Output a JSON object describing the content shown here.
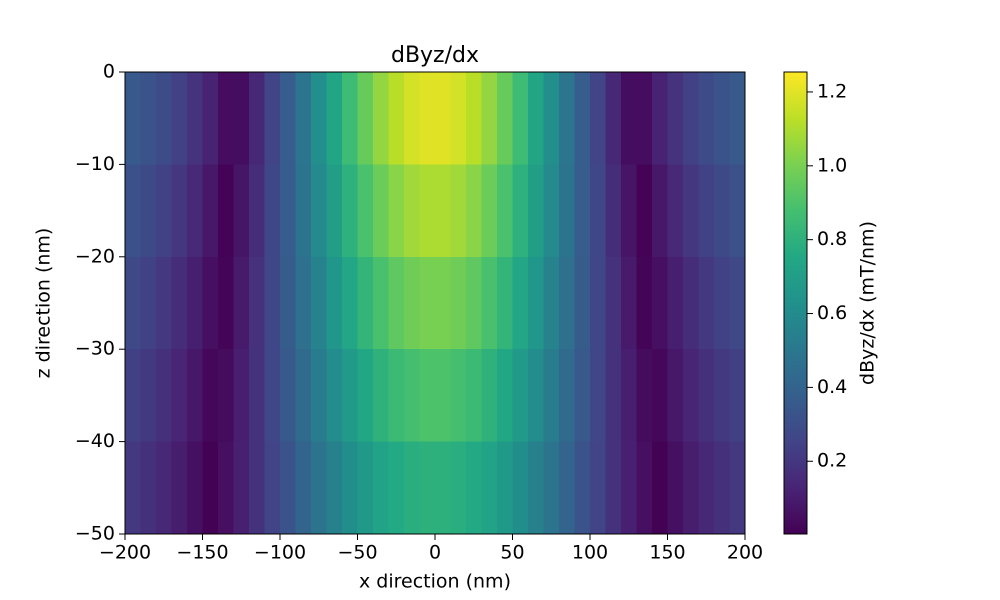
{
  "chart_data": {
    "type": "heatmap",
    "title": "dByz/dx",
    "x_label": "x direction (nm)",
    "y_label": "z direction (nm)",
    "colorbar_label": "dByz/dx (mT/nm)",
    "colormap": "viridis",
    "x": [
      -195,
      -185,
      -175,
      -165,
      -155,
      -145,
      -135,
      -125,
      -115,
      -105,
      -95,
      -85,
      -75,
      -65,
      -55,
      -45,
      -35,
      -25,
      -15,
      -5,
      5,
      15,
      25,
      35,
      45,
      55,
      65,
      75,
      85,
      95,
      105,
      115,
      125,
      135,
      145,
      155,
      165,
      175,
      185,
      195
    ],
    "y": [
      -5,
      -15,
      -25,
      -35,
      -45
    ],
    "values": [
      [
        0.352,
        0.323,
        0.287,
        0.242,
        0.187,
        0.121,
        0.044,
        0.045,
        0.144,
        0.253,
        0.371,
        0.492,
        0.617,
        0.739,
        0.855,
        0.96,
        1.05,
        1.122,
        1.171,
        1.197,
        1.197,
        1.171,
        1.122,
        1.05,
        0.96,
        0.855,
        0.739,
        0.617,
        0.492,
        0.371,
        0.253,
        0.144,
        0.045,
        0.044,
        0.121,
        0.187,
        0.242,
        0.287,
        0.323,
        0.352
      ],
      [
        0.313,
        0.283,
        0.246,
        0.201,
        0.147,
        0.084,
        0.01,
        0.073,
        0.165,
        0.265,
        0.371,
        0.48,
        0.591,
        0.699,
        0.8,
        0.892,
        0.97,
        1.032,
        1.075,
        1.097,
        1.097,
        1.075,
        1.032,
        0.97,
        0.892,
        0.8,
        0.699,
        0.591,
        0.48,
        0.371,
        0.265,
        0.165,
        0.073,
        0.01,
        0.084,
        0.147,
        0.201,
        0.246,
        0.283,
        0.313
      ],
      [
        0.275,
        0.245,
        0.208,
        0.164,
        0.112,
        0.052,
        0.017,
        0.094,
        0.178,
        0.269,
        0.363,
        0.461,
        0.558,
        0.653,
        0.742,
        0.821,
        0.889,
        0.942,
        0.979,
        0.998,
        0.998,
        0.979,
        0.942,
        0.889,
        0.821,
        0.742,
        0.653,
        0.558,
        0.461,
        0.363,
        0.269,
        0.178,
        0.094,
        0.017,
        0.052,
        0.112,
        0.164,
        0.208,
        0.245,
        0.275
      ],
      [
        0.239,
        0.209,
        0.174,
        0.131,
        0.082,
        0.026,
        0.038,
        0.108,
        0.184,
        0.265,
        0.349,
        0.435,
        0.52,
        0.602,
        0.679,
        0.747,
        0.805,
        0.851,
        0.882,
        0.898,
        0.898,
        0.882,
        0.851,
        0.805,
        0.747,
        0.679,
        0.602,
        0.52,
        0.435,
        0.349,
        0.265,
        0.184,
        0.108,
        0.038,
        0.026,
        0.082,
        0.131,
        0.174,
        0.209,
        0.239
      ],
      [
        0.205,
        0.176,
        0.143,
        0.103,
        0.057,
        0.005,
        0.052,
        0.115,
        0.183,
        0.255,
        0.328,
        0.403,
        0.476,
        0.547,
        0.612,
        0.671,
        0.72,
        0.758,
        0.785,
        0.798,
        0.798,
        0.785,
        0.758,
        0.72,
        0.671,
        0.612,
        0.547,
        0.476,
        0.403,
        0.328,
        0.255,
        0.183,
        0.115,
        0.052,
        0.005,
        0.057,
        0.103,
        0.143,
        0.176,
        0.205
      ]
    ],
    "xlim": [
      -200,
      200
    ],
    "xticks": [
      {
        "value": -200,
        "label": "−200"
      },
      {
        "value": -150,
        "label": "−150"
      },
      {
        "value": -100,
        "label": "−100"
      },
      {
        "value": -50,
        "label": "−50"
      },
      0,
      50,
      100,
      150,
      200
    ],
    "ylim": [
      -50,
      0
    ],
    "yticks": [
      0,
      {
        "value": -10,
        "label": "−10"
      },
      {
        "value": -20,
        "label": "−20"
      },
      {
        "value": -30,
        "label": "−30"
      },
      {
        "value": -40,
        "label": "−40"
      },
      {
        "value": -50,
        "label": "−50"
      }
    ],
    "clim": [
      0.003,
      1.254
    ],
    "cticks": [
      0.2,
      0.4,
      0.6,
      0.8,
      {
        "value": 1,
        "label": "1.0"
      },
      1.2
    ]
  }
}
